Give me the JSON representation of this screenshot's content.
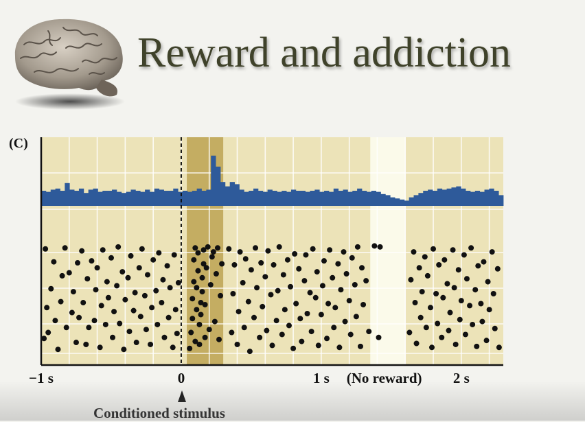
{
  "slide": {
    "title": "Reward and addiction",
    "panel_label": "(C)",
    "stimulus_label": "Conditioned stimulus",
    "brain_icon": "brain-icon"
  },
  "colors": {
    "title": "#3f422a",
    "panel_bg": "#ece3b8",
    "highlight_band": "#c4ad62",
    "no_reward_band": "#fbfaea",
    "histogram": "#2e5a9a",
    "dots": "#111111"
  },
  "chart_data": {
    "type": "scatter",
    "description_free": true,
    "x_unit": "s",
    "xlim": [
      -1,
      2.3
    ],
    "x_ticks": [
      {
        "value": -1,
        "label": "−1 s"
      },
      {
        "value": 0,
        "label": "0"
      },
      {
        "value": 1,
        "label": "1 s"
      },
      {
        "value": 1.45,
        "label": "(No reward)"
      },
      {
        "value": 2,
        "label": "2 s"
      }
    ],
    "grid": true,
    "stimulus_onset": 0,
    "highlight_window": [
      0.04,
      0.3
    ],
    "no_reward_window": [
      1.35,
      1.6
    ],
    "histogram": {
      "bin_width": 0.033,
      "heights": [
        0.5,
        0.45,
        0.55,
        0.6,
        0.5,
        0.85,
        0.55,
        0.5,
        0.6,
        0.4,
        0.55,
        0.6,
        0.45,
        0.5,
        0.5,
        0.55,
        0.45,
        0.4,
        0.45,
        0.55,
        0.5,
        0.45,
        0.55,
        0.45,
        0.6,
        0.55,
        0.5,
        0.5,
        0.6,
        0.45,
        0.5,
        0.45,
        0.5,
        0.6,
        0.5,
        0.55,
        2.1,
        1.6,
        0.9,
        0.7,
        0.9,
        0.8,
        0.55,
        0.45,
        0.5,
        0.6,
        0.5,
        0.45,
        0.55,
        0.5,
        0.45,
        0.5,
        0.45,
        0.55,
        0.5,
        0.5,
        0.45,
        0.5,
        0.55,
        0.45,
        0.5,
        0.45,
        0.6,
        0.5,
        0.55,
        0.45,
        0.5,
        0.6,
        0.5,
        0.45,
        0.5,
        0.45,
        0.35,
        0.3,
        0.2,
        0.15,
        0.1,
        0.05,
        0.2,
        0.3,
        0.4,
        0.5,
        0.55,
        0.5,
        0.6,
        0.55,
        0.6,
        0.65,
        0.7,
        0.6,
        0.5,
        0.45,
        0.5,
        0.45,
        0.55,
        0.6,
        0.5,
        0.3
      ]
    },
    "trials": 12,
    "dots": [
      [
        -0.98,
        1.5
      ],
      [
        -0.97,
        10.5
      ],
      [
        -0.96,
        4.6
      ],
      [
        -0.95,
        2.1
      ],
      [
        -0.93,
        6.5
      ],
      [
        -0.91,
        9.2
      ],
      [
        -0.9,
        3.3
      ],
      [
        -0.88,
        0.4
      ],
      [
        -0.86,
        5.2
      ],
      [
        -0.85,
        7.8
      ],
      [
        -0.83,
        10.6
      ],
      [
        -0.82,
        2.6
      ],
      [
        -0.8,
        8.1
      ],
      [
        -0.78,
        4.1
      ],
      [
        -0.77,
        6.2
      ],
      [
        -0.75,
        1.1
      ],
      [
        -0.74,
        9.1
      ],
      [
        -0.73,
        3.6
      ],
      [
        -0.71,
        10.3
      ],
      [
        -0.7,
        5.1
      ],
      [
        -0.68,
        0.9
      ],
      [
        -0.67,
        7.5
      ],
      [
        -0.66,
        2.6
      ],
      [
        -0.64,
        9.3
      ],
      [
        -0.62,
        3.3
      ],
      [
        -0.61,
        6.4
      ],
      [
        -0.6,
        8.6
      ],
      [
        -0.58,
        0.6
      ],
      [
        -0.57,
        4.8
      ],
      [
        -0.56,
        10.4
      ],
      [
        -0.54,
        2.9
      ],
      [
        -0.53,
        7.2
      ],
      [
        -0.52,
        5.6
      ],
      [
        -0.5,
        9.6
      ],
      [
        -0.49,
        1.6
      ],
      [
        -0.48,
        4.2
      ],
      [
        -0.46,
        6.8
      ],
      [
        -0.45,
        10.7
      ],
      [
        -0.44,
        3.0
      ],
      [
        -0.42,
        8.2
      ],
      [
        -0.41,
        0.4
      ],
      [
        -0.4,
        5.4
      ],
      [
        -0.38,
        7.6
      ],
      [
        -0.37,
        2.2
      ],
      [
        -0.36,
        9.8
      ],
      [
        -0.34,
        4.3
      ],
      [
        -0.33,
        6.1
      ],
      [
        -0.32,
        1.1
      ],
      [
        -0.3,
        8.6
      ],
      [
        -0.29,
        3.7
      ],
      [
        -0.28,
        10.5
      ],
      [
        -0.26,
        5.8
      ],
      [
        -0.25,
        2.4
      ],
      [
        -0.24,
        7.9
      ],
      [
        -0.22,
        0.9
      ],
      [
        -0.21,
        4.6
      ],
      [
        -0.2,
        9.4
      ],
      [
        -0.18,
        6.3
      ],
      [
        -0.17,
        2.9
      ],
      [
        -0.16,
        10.1
      ],
      [
        -0.14,
        5.1
      ],
      [
        -0.13,
        7.4
      ],
      [
        -0.12,
        1.6
      ],
      [
        -0.1,
        8.8
      ],
      [
        -0.09,
        3.6
      ],
      [
        -0.08,
        6.6
      ],
      [
        -0.06,
        0.6
      ],
      [
        -0.05,
        9.9
      ],
      [
        -0.04,
        4.4
      ],
      [
        -0.03,
        2.0
      ],
      [
        -0.02,
        7.1
      ],
      [
        0.06,
        0.5
      ],
      [
        0.07,
        2.1
      ],
      [
        0.08,
        3.5
      ],
      [
        0.08,
        5.5
      ],
      [
        0.09,
        7.2
      ],
      [
        0.09,
        9.4
      ],
      [
        0.1,
        10.6
      ],
      [
        0.1,
        1.2
      ],
      [
        0.11,
        4.4
      ],
      [
        0.11,
        6.6
      ],
      [
        0.12,
        8.3
      ],
      [
        0.12,
        10.1
      ],
      [
        0.13,
        0.9
      ],
      [
        0.13,
        2.9
      ],
      [
        0.14,
        3.9
      ],
      [
        0.14,
        5.1
      ],
      [
        0.15,
        6.2
      ],
      [
        0.15,
        7.6
      ],
      [
        0.16,
        9.0
      ],
      [
        0.16,
        10.4
      ],
      [
        0.17,
        1.6
      ],
      [
        0.17,
        4.9
      ],
      [
        0.18,
        8.6
      ],
      [
        0.19,
        10.7
      ],
      [
        0.2,
        2.4
      ],
      [
        0.21,
        6.9
      ],
      [
        0.22,
        9.7
      ],
      [
        0.23,
        10.2
      ],
      [
        0.24,
        3.2
      ],
      [
        0.25,
        8.0
      ],
      [
        0.26,
        10.6
      ],
      [
        0.27,
        1.4
      ],
      [
        0.28,
        5.8
      ],
      [
        0.29,
        9.0
      ],
      [
        0.34,
        10.5
      ],
      [
        0.36,
        2.1
      ],
      [
        0.37,
        6.0
      ],
      [
        0.38,
        8.9
      ],
      [
        0.4,
        0.9
      ],
      [
        0.41,
        4.2
      ],
      [
        0.42,
        10.2
      ],
      [
        0.44,
        7.1
      ],
      [
        0.45,
        2.6
      ],
      [
        0.46,
        9.5
      ],
      [
        0.48,
        5.2
      ],
      [
        0.49,
        0.2
      ],
      [
        0.5,
        8.4
      ],
      [
        0.52,
        3.6
      ],
      [
        0.53,
        10.6
      ],
      [
        0.54,
        6.6
      ],
      [
        0.56,
        1.6
      ],
      [
        0.57,
        9.1
      ],
      [
        0.58,
        4.7
      ],
      [
        0.6,
        7.7
      ],
      [
        0.61,
        2.3
      ],
      [
        0.62,
        10.3
      ],
      [
        0.64,
        5.9
      ],
      [
        0.65,
        0.8
      ],
      [
        0.66,
        8.9
      ],
      [
        0.68,
        3.3
      ],
      [
        0.69,
        6.3
      ],
      [
        0.7,
        10.7
      ],
      [
        0.72,
        1.9
      ],
      [
        0.73,
        7.9
      ],
      [
        0.74,
        4.4
      ],
      [
        0.76,
        9.4
      ],
      [
        0.77,
        2.8
      ],
      [
        0.78,
        6.7
      ],
      [
        0.8,
        0.5
      ],
      [
        0.81,
        10.0
      ],
      [
        0.82,
        5.0
      ],
      [
        0.84,
        8.5
      ],
      [
        0.85,
        3.5
      ],
      [
        0.86,
        1.2
      ],
      [
        0.88,
        7.3
      ],
      [
        0.89,
        9.9
      ],
      [
        0.9,
        4.0
      ],
      [
        0.92,
        6.1
      ],
      [
        0.93,
        2.2
      ],
      [
        0.94,
        10.5
      ],
      [
        0.96,
        5.6
      ],
      [
        0.97,
        8.2
      ],
      [
        0.98,
        0.8
      ],
      [
        1.0,
        3.9
      ],
      [
        1.01,
        6.8
      ],
      [
        1.02,
        9.3
      ],
      [
        1.04,
        1.5
      ],
      [
        1.05,
        5.0
      ],
      [
        1.06,
        10.4
      ],
      [
        1.08,
        7.6
      ],
      [
        1.09,
        2.6
      ],
      [
        1.1,
        4.6
      ],
      [
        1.12,
        9.0
      ],
      [
        1.13,
        0.6
      ],
      [
        1.14,
        6.4
      ],
      [
        1.16,
        10.2
      ],
      [
        1.17,
        3.2
      ],
      [
        1.18,
        8.0
      ],
      [
        1.2,
        5.3
      ],
      [
        1.21,
        1.9
      ],
      [
        1.22,
        9.6
      ],
      [
        1.24,
        6.9
      ],
      [
        1.25,
        3.7
      ],
      [
        1.26,
        10.7
      ],
      [
        1.28,
        0.7
      ],
      [
        1.29,
        8.6
      ],
      [
        1.3,
        4.9
      ],
      [
        1.32,
        7.3
      ],
      [
        1.34,
        2.2
      ],
      [
        1.38,
        10.8
      ],
      [
        1.42,
        10.7
      ],
      [
        1.41,
        1.6
      ],
      [
        1.63,
        2.1
      ],
      [
        1.64,
        7.4
      ],
      [
        1.66,
        10.2
      ],
      [
        1.67,
        5.1
      ],
      [
        1.68,
        1.0
      ],
      [
        1.7,
        8.6
      ],
      [
        1.71,
        3.6
      ],
      [
        1.72,
        6.2
      ],
      [
        1.74,
        9.7
      ],
      [
        1.75,
        2.6
      ],
      [
        1.76,
        7.8
      ],
      [
        1.78,
        4.6
      ],
      [
        1.79,
        0.6
      ],
      [
        1.8,
        10.5
      ],
      [
        1.82,
        6.0
      ],
      [
        1.83,
        3.0
      ],
      [
        1.84,
        8.9
      ],
      [
        1.86,
        1.6
      ],
      [
        1.87,
        5.6
      ],
      [
        1.88,
        9.4
      ],
      [
        1.9,
        7.0
      ],
      [
        1.91,
        2.3
      ],
      [
        1.92,
        4.1
      ],
      [
        1.94,
        10.4
      ],
      [
        1.95,
        6.6
      ],
      [
        1.96,
        0.9
      ],
      [
        1.98,
        8.4
      ],
      [
        1.99,
        3.4
      ],
      [
        2.0,
        5.3
      ],
      [
        2.02,
        9.9
      ],
      [
        2.03,
        1.9
      ],
      [
        2.04,
        7.5
      ],
      [
        2.06,
        4.8
      ],
      [
        2.07,
        10.6
      ],
      [
        2.08,
        2.9
      ],
      [
        2.1,
        6.4
      ],
      [
        2.11,
        0.7
      ],
      [
        2.12,
        8.8
      ],
      [
        2.14,
        5.0
      ],
      [
        2.15,
        3.2
      ],
      [
        2.16,
        9.2
      ],
      [
        2.18,
        1.3
      ],
      [
        2.19,
        7.2
      ],
      [
        2.2,
        4.4
      ],
      [
        2.22,
        10.2
      ],
      [
        2.23,
        6.0
      ],
      [
        2.24,
        2.5
      ],
      [
        2.26,
        8.5
      ],
      [
        2.27,
        0.6
      ]
    ]
  }
}
